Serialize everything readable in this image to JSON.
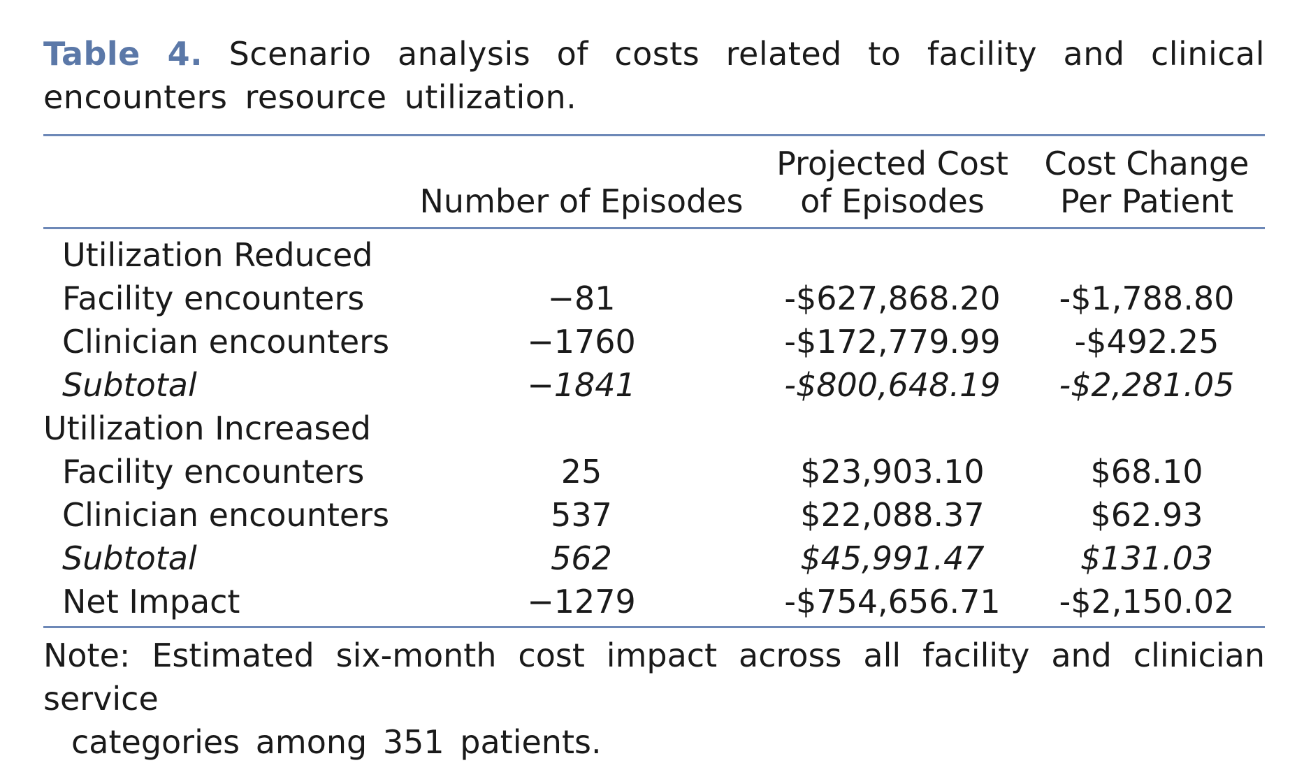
{
  "caption": {
    "label": "Table 4.",
    "text": "Scenario analysis of costs related to facility and clinical encounters resource utilization."
  },
  "columns": {
    "episodes_label": "Number of Episodes",
    "projected_line1": "Projected Cost",
    "projected_line2": "of Episodes",
    "change_line1": "Cost Change",
    "change_line2": "Per Patient"
  },
  "rows": [
    {
      "label": "Utilization Reduced",
      "episodes": "",
      "projected": "",
      "change": "",
      "style": "section"
    },
    {
      "label": "Facility encounters",
      "episodes": "−81",
      "projected": "-$627,868.20",
      "change": "-$1,788.80",
      "style": "normal"
    },
    {
      "label": "Clinician encounters",
      "episodes": "−1760",
      "projected": "-$172,779.99",
      "change": "-$492.25",
      "style": "normal"
    },
    {
      "label": "Subtotal",
      "episodes": "−1841",
      "projected": "-$800,648.19",
      "change": "-$2,281.05",
      "style": "italic"
    },
    {
      "label": "Utilization Increased",
      "episodes": "",
      "projected": "",
      "change": "",
      "style": "section-flush"
    },
    {
      "label": "Facility encounters",
      "episodes": "25",
      "projected": "$23,903.10",
      "change": "$68.10",
      "style": "normal"
    },
    {
      "label": "Clinician encounters",
      "episodes": "537",
      "projected": "$22,088.37",
      "change": "$62.93",
      "style": "normal"
    },
    {
      "label": "Subtotal",
      "episodes": "562",
      "projected": "$45,991.47",
      "change": "$131.03",
      "style": "italic"
    },
    {
      "label": "Net Impact",
      "episodes": "−1279",
      "projected": "-$754,656.71",
      "change": "-$2,150.02",
      "style": "normal"
    }
  ],
  "note": {
    "line1": "Note: Estimated six-month cost impact across all facility and clinician service",
    "line2": "categories among 351 patients."
  }
}
